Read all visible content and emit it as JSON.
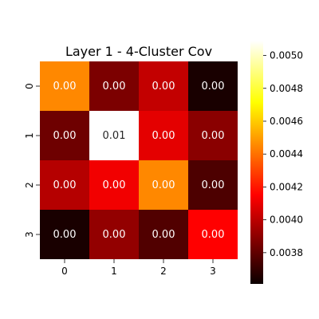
{
  "chart_data": {
    "type": "heatmap",
    "title": "Layer 1 - 4-Cluster Cov",
    "x_categories": [
      "0",
      "1",
      "2",
      "3"
    ],
    "y_categories": [
      "0",
      "1",
      "2",
      "3"
    ],
    "cell_labels": [
      [
        "0.00",
        "0.00",
        "0.00",
        "0.00"
      ],
      [
        "0.00",
        "0.01",
        "0.00",
        "0.00"
      ],
      [
        "0.00",
        "0.00",
        "0.00",
        "0.00"
      ],
      [
        "0.00",
        "0.00",
        "0.00",
        "0.00"
      ]
    ],
    "values": [
      [
        0.00445,
        0.00385,
        0.004,
        0.00364
      ],
      [
        0.00382,
        0.0051,
        0.00407,
        0.00388
      ],
      [
        0.00397,
        0.0041,
        0.00445,
        0.00375
      ],
      [
        0.00364,
        0.0039,
        0.00376,
        0.00415
      ]
    ],
    "colormap": "hot",
    "colorbar": {
      "vmin": 0.00361,
      "vmax": 0.00509,
      "tick_values": [
        0.0038,
        0.004,
        0.0042,
        0.0044,
        0.0046,
        0.0048,
        0.005
      ],
      "tick_labels": [
        "0.0038",
        "0.0040",
        "0.0042",
        "0.0044",
        "0.0046",
        "0.0048",
        "0.0050"
      ]
    },
    "grid": false,
    "legend": "colorbar-right"
  }
}
